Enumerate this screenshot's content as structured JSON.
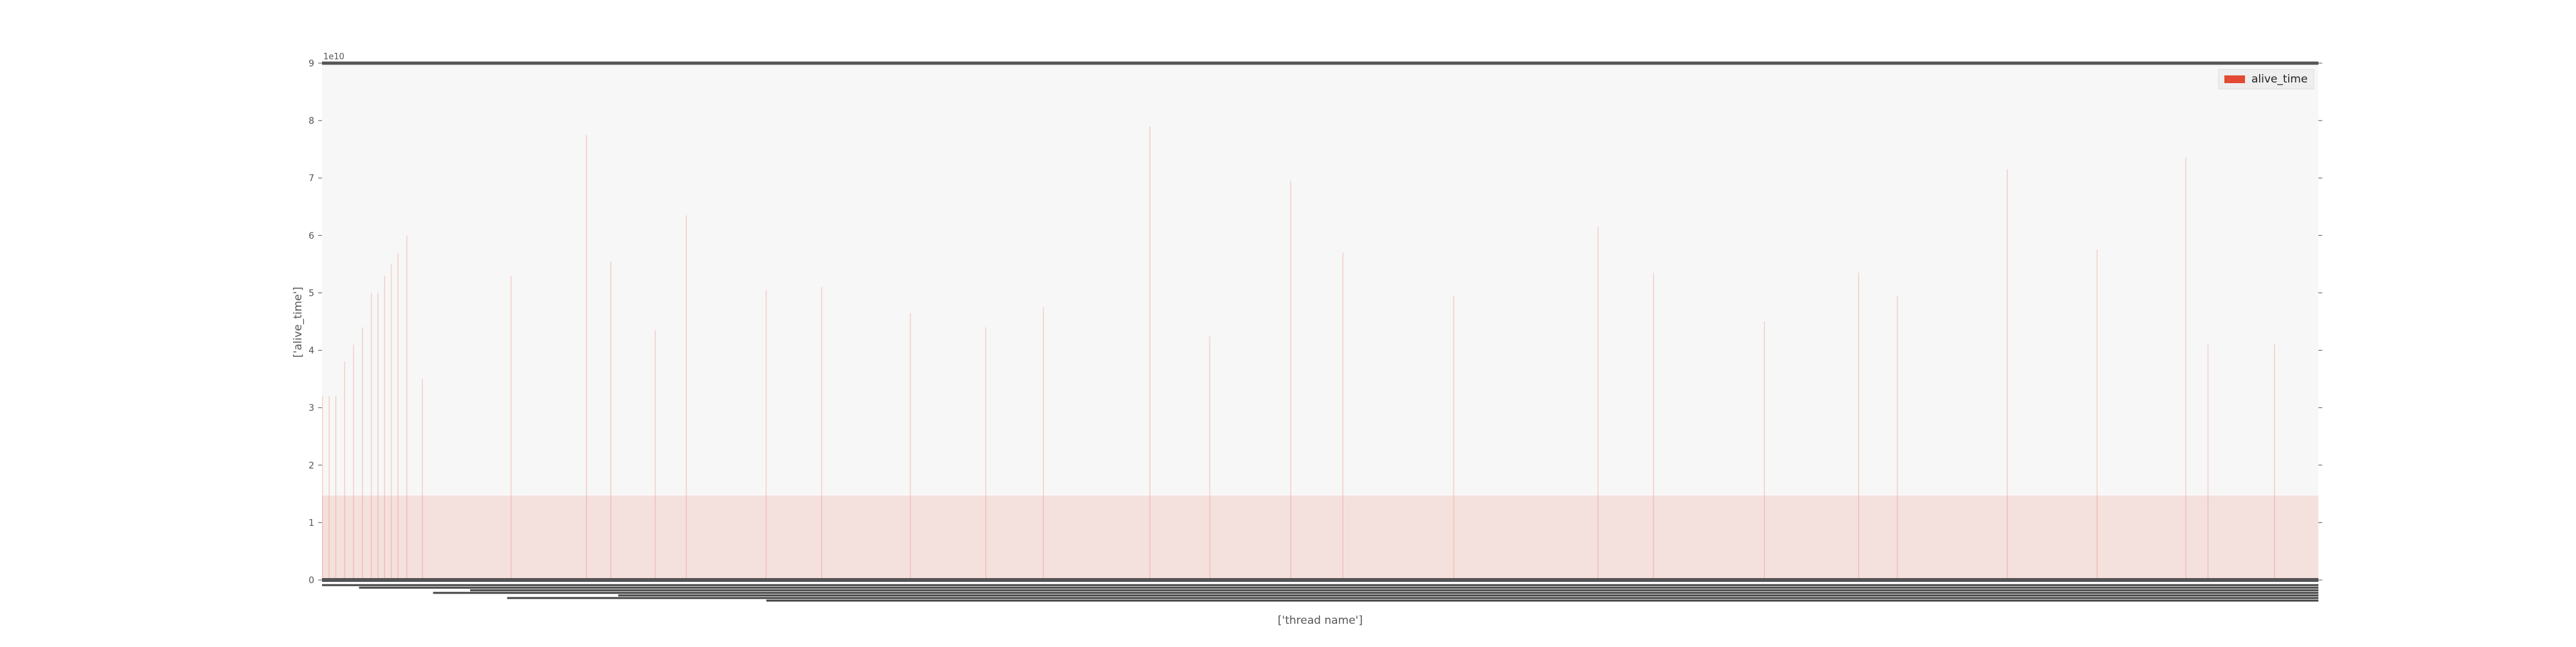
{
  "chart_data": {
    "type": "bar",
    "title": "",
    "xlabel": "['thread name']",
    "ylabel": "['alive_time']",
    "y_offset_label": "1e10",
    "y_scale_factor": 10000000000,
    "ylim": [
      0,
      9
    ],
    "yticks": [
      0,
      1,
      2,
      3,
      4,
      5,
      6,
      7,
      8,
      9
    ],
    "ytick_labels": [
      "0",
      "1",
      "2",
      "3",
      "4",
      "5",
      "6",
      "7",
      "8",
      "9"
    ],
    "grid": false,
    "legend": {
      "position": "top-right",
      "entries": [
        "alive_time"
      ]
    },
    "series": [
      {
        "name": "alive_time",
        "color": "#e24a33",
        "baseline_value": 1.47,
        "bar_count": 1800,
        "peak_values": [
          {
            "index": 0,
            "value": 3.2
          },
          {
            "index": 6,
            "value": 3.2
          },
          {
            "index": 12,
            "value": 3.2
          },
          {
            "index": 20,
            "value": 3.8
          },
          {
            "index": 28,
            "value": 4.1
          },
          {
            "index": 36,
            "value": 4.4
          },
          {
            "index": 44,
            "value": 5.0
          },
          {
            "index": 50,
            "value": 5.0
          },
          {
            "index": 56,
            "value": 5.3
          },
          {
            "index": 62,
            "value": 5.5
          },
          {
            "index": 68,
            "value": 5.7
          },
          {
            "index": 76,
            "value": 6.0
          },
          {
            "index": 90,
            "value": 3.5
          },
          {
            "index": 170,
            "value": 5.3
          },
          {
            "index": 238,
            "value": 7.75
          },
          {
            "index": 260,
            "value": 5.55
          },
          {
            "index": 300,
            "value": 4.35
          },
          {
            "index": 328,
            "value": 6.35
          },
          {
            "index": 400,
            "value": 5.05
          },
          {
            "index": 450,
            "value": 5.1
          },
          {
            "index": 530,
            "value": 4.65
          },
          {
            "index": 598,
            "value": 4.4
          },
          {
            "index": 650,
            "value": 4.75
          },
          {
            "index": 746,
            "value": 7.9
          },
          {
            "index": 800,
            "value": 4.25
          },
          {
            "index": 873,
            "value": 6.95
          },
          {
            "index": 920,
            "value": 5.7
          },
          {
            "index": 1020,
            "value": 4.95
          },
          {
            "index": 1150,
            "value": 6.15
          },
          {
            "index": 1200,
            "value": 5.35
          },
          {
            "index": 1300,
            "value": 4.5
          },
          {
            "index": 1385,
            "value": 5.35
          },
          {
            "index": 1420,
            "value": 4.95
          },
          {
            "index": 1519,
            "value": 7.15
          },
          {
            "index": 1600,
            "value": 5.75
          },
          {
            "index": 1680,
            "value": 7.35
          },
          {
            "index": 1700,
            "value": 4.1
          },
          {
            "index": 1760,
            "value": 4.1
          }
        ]
      }
    ]
  }
}
